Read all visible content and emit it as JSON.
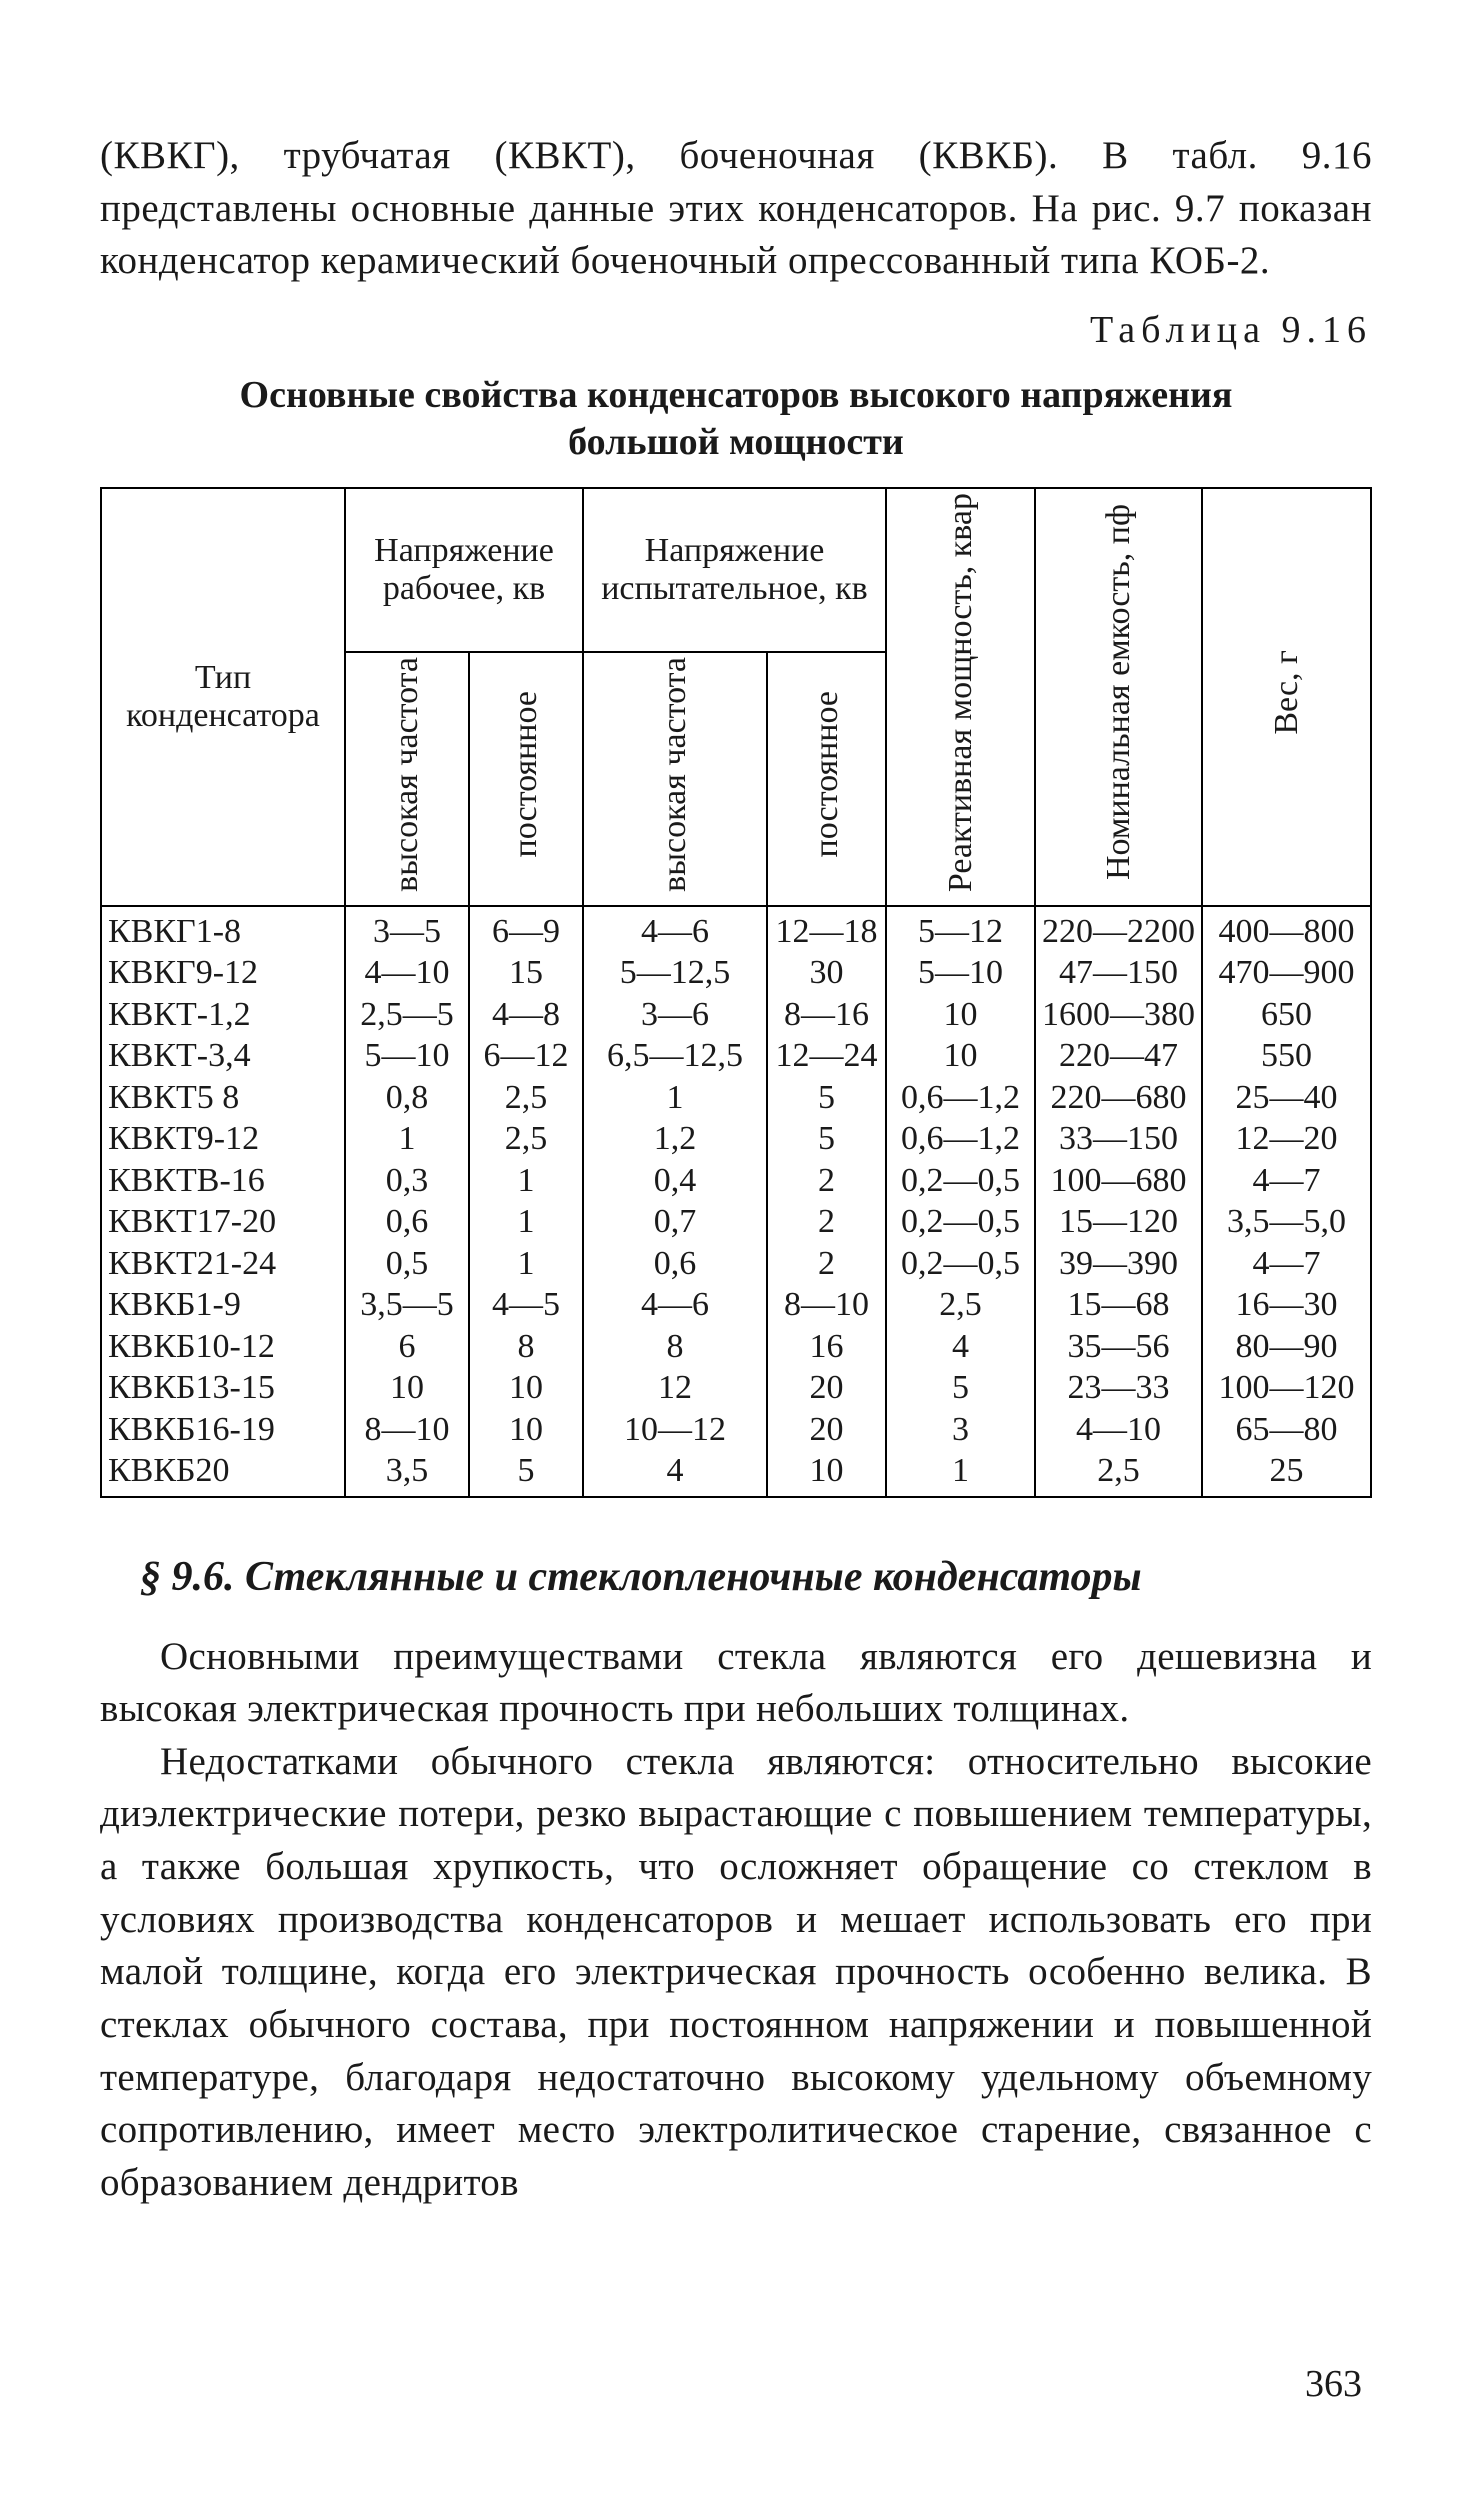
{
  "intro_text": "(КВКГ), трубчатая (КВКТ), боченочная (КВКБ). В табл. 9.16 представлены основные данные этих конденса­торов. На рис. 9.7 показан конденсатор керамический бо­ченочный опрессованный типа КОБ-2.",
  "table_label": "Таблица 9.16",
  "table_title_1": "Основные свойства конденсаторов высокого напряжения",
  "table_title_2": "большой мощности",
  "head": {
    "type": "Тип\nконденсатора",
    "work_voltage": "Напряжение рабочее, кв",
    "test_voltage": "Напряжение испытательное, кв",
    "hf": "высокая частота",
    "dc": "постоян­ное",
    "react_power": "Реактивная мощ­ность, квар",
    "capacitance": "Номинальная емкость, пф",
    "weight": "Вес, г"
  },
  "rows": [
    {
      "type": "КВКГ1-8",
      "whf": "3—5",
      "wdc": "6—9",
      "thf": "4—6",
      "tdc": "12—18",
      "q": "5—12",
      "c": "220—2200",
      "w": "400—800"
    },
    {
      "type": "КВКГ9-12",
      "whf": "4—10",
      "wdc": "15",
      "thf": "5—12,5",
      "tdc": "30",
      "q": "5—10",
      "c": "47—150",
      "w": "470—900"
    },
    {
      "type": "КВКТ-1,2",
      "whf": "2,5—5",
      "wdc": "4—8",
      "thf": "3—6",
      "tdc": "8—16",
      "q": "10",
      "c": "1600—380",
      "w": "650"
    },
    {
      "type": "КВКТ-3,4",
      "whf": "5—10",
      "wdc": "6—12",
      "thf": "6,5—12,5",
      "tdc": "12—24",
      "q": "10",
      "c": "220—47",
      "w": "550"
    },
    {
      "type": "КВКТ5 8",
      "whf": "0,8",
      "wdc": "2,5",
      "thf": "1",
      "tdc": "5",
      "q": "0,6—1,2",
      "c": "220—680",
      "w": "25—40"
    },
    {
      "type": "КВКТ9-12",
      "whf": "1",
      "wdc": "2,5",
      "thf": "1,2",
      "tdc": "5",
      "q": "0,6—1,2",
      "c": "33—150",
      "w": "12—20"
    },
    {
      "type": "КВКТВ-16",
      "whf": "0,3",
      "wdc": "1",
      "thf": "0,4",
      "tdc": "2",
      "q": "0,2—0,5",
      "c": "100—680",
      "w": "4—7"
    },
    {
      "type": "КВКТ17-20",
      "whf": "0,6",
      "wdc": "1",
      "thf": "0,7",
      "tdc": "2",
      "q": "0,2—0,5",
      "c": "15—120",
      "w": "3,5—5,0"
    },
    {
      "type": "КВКТ21-24",
      "whf": "0,5",
      "wdc": "1",
      "thf": "0,6",
      "tdc": "2",
      "q": "0,2—0,5",
      "c": "39—390",
      "w": "4—7"
    },
    {
      "type": "КВКБ1-9",
      "whf": "3,5—5",
      "wdc": "4—5",
      "thf": "4—6",
      "tdc": "8—10",
      "q": "2,5",
      "c": "15—68",
      "w": "16—30"
    },
    {
      "type": "КВКБ10-12",
      "whf": "6",
      "wdc": "8",
      "thf": "8",
      "tdc": "16",
      "q": "4",
      "c": "35—56",
      "w": "80—90"
    },
    {
      "type": "КВКБ13-15",
      "whf": "10",
      "wdc": "10",
      "thf": "12",
      "tdc": "20",
      "q": "5",
      "c": "23—33",
      "w": "100—120"
    },
    {
      "type": "КВКБ16-19",
      "whf": "8—10",
      "wdc": "10",
      "thf": "10—12",
      "tdc": "20",
      "q": "3",
      "c": "4—10",
      "w": "65—80"
    },
    {
      "type": "КВКБ20",
      "whf": "3,5",
      "wdc": "5",
      "thf": "4",
      "tdc": "10",
      "q": "1",
      "c": "2,5",
      "w": "25"
    }
  ],
  "section_title": "§ 9.6. Стеклянные и стеклопленочные конденсаторы",
  "para1": "Основными преимуществами стекла являются его де­шевизна и высокая электрическая прочность при неболь­ших толщинах.",
  "para2": "Недостатками обычного стекла являются: относительно высокие диэлектрические потери, резко вырастающие с повы­шением температуры, а также большая хрупкость, что ос­ложняет обращение со стеклом в условиях производства кон­денсаторов и мешает использовать его при малой толщине, когда его электрическая прочность особенно велика. В стеклах обычного состава, при постоянном напряжении и повышенной температуре, благодаря недостаточно высокому удельному объемному сопротивлению, имеет место электро­литическое старение, связанное с образованием дендритов",
  "page_number": "363"
}
